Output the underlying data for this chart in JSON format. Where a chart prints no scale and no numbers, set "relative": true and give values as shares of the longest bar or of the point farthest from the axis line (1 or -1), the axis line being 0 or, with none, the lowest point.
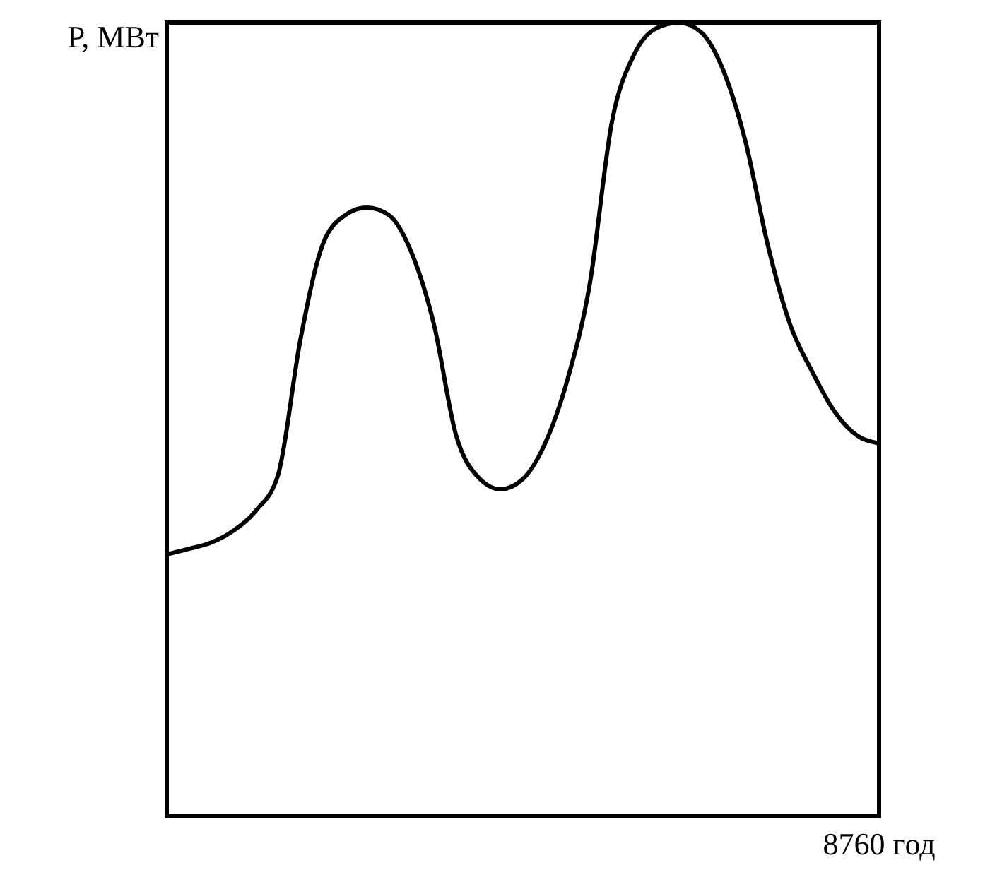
{
  "chart_data": {
    "type": "line",
    "relative": true,
    "ylabel": "P, МВт",
    "annotations": [
      "8760 год"
    ],
    "grid": false,
    "line_style": "solid",
    "categories": [
      null,
      null,
      null,
      null,
      null,
      null,
      null,
      null,
      null,
      null,
      null,
      null,
      null,
      null,
      null,
      null,
      null,
      null,
      null,
      null,
      null,
      null,
      null,
      null,
      null,
      null,
      null,
      null,
      null,
      null,
      null,
      null,
      null
    ],
    "series": [
      {
        "color": "#000000",
        "values": [
          0.33,
          0.337,
          0.345,
          0.36,
          0.385,
          0.43,
          0.6,
          0.72,
          0.757,
          0.767,
          0.757,
          0.71,
          0.62,
          0.48,
          0.427,
          0.412,
          0.425,
          0.47,
          0.55,
          0.67,
          0.875,
          0.96,
          0.993,
          1,
          0.988,
          0.94,
          0.85,
          0.72,
          0.62,
          0.56,
          0.51,
          0.48,
          0.47
        ]
      }
    ]
  }
}
